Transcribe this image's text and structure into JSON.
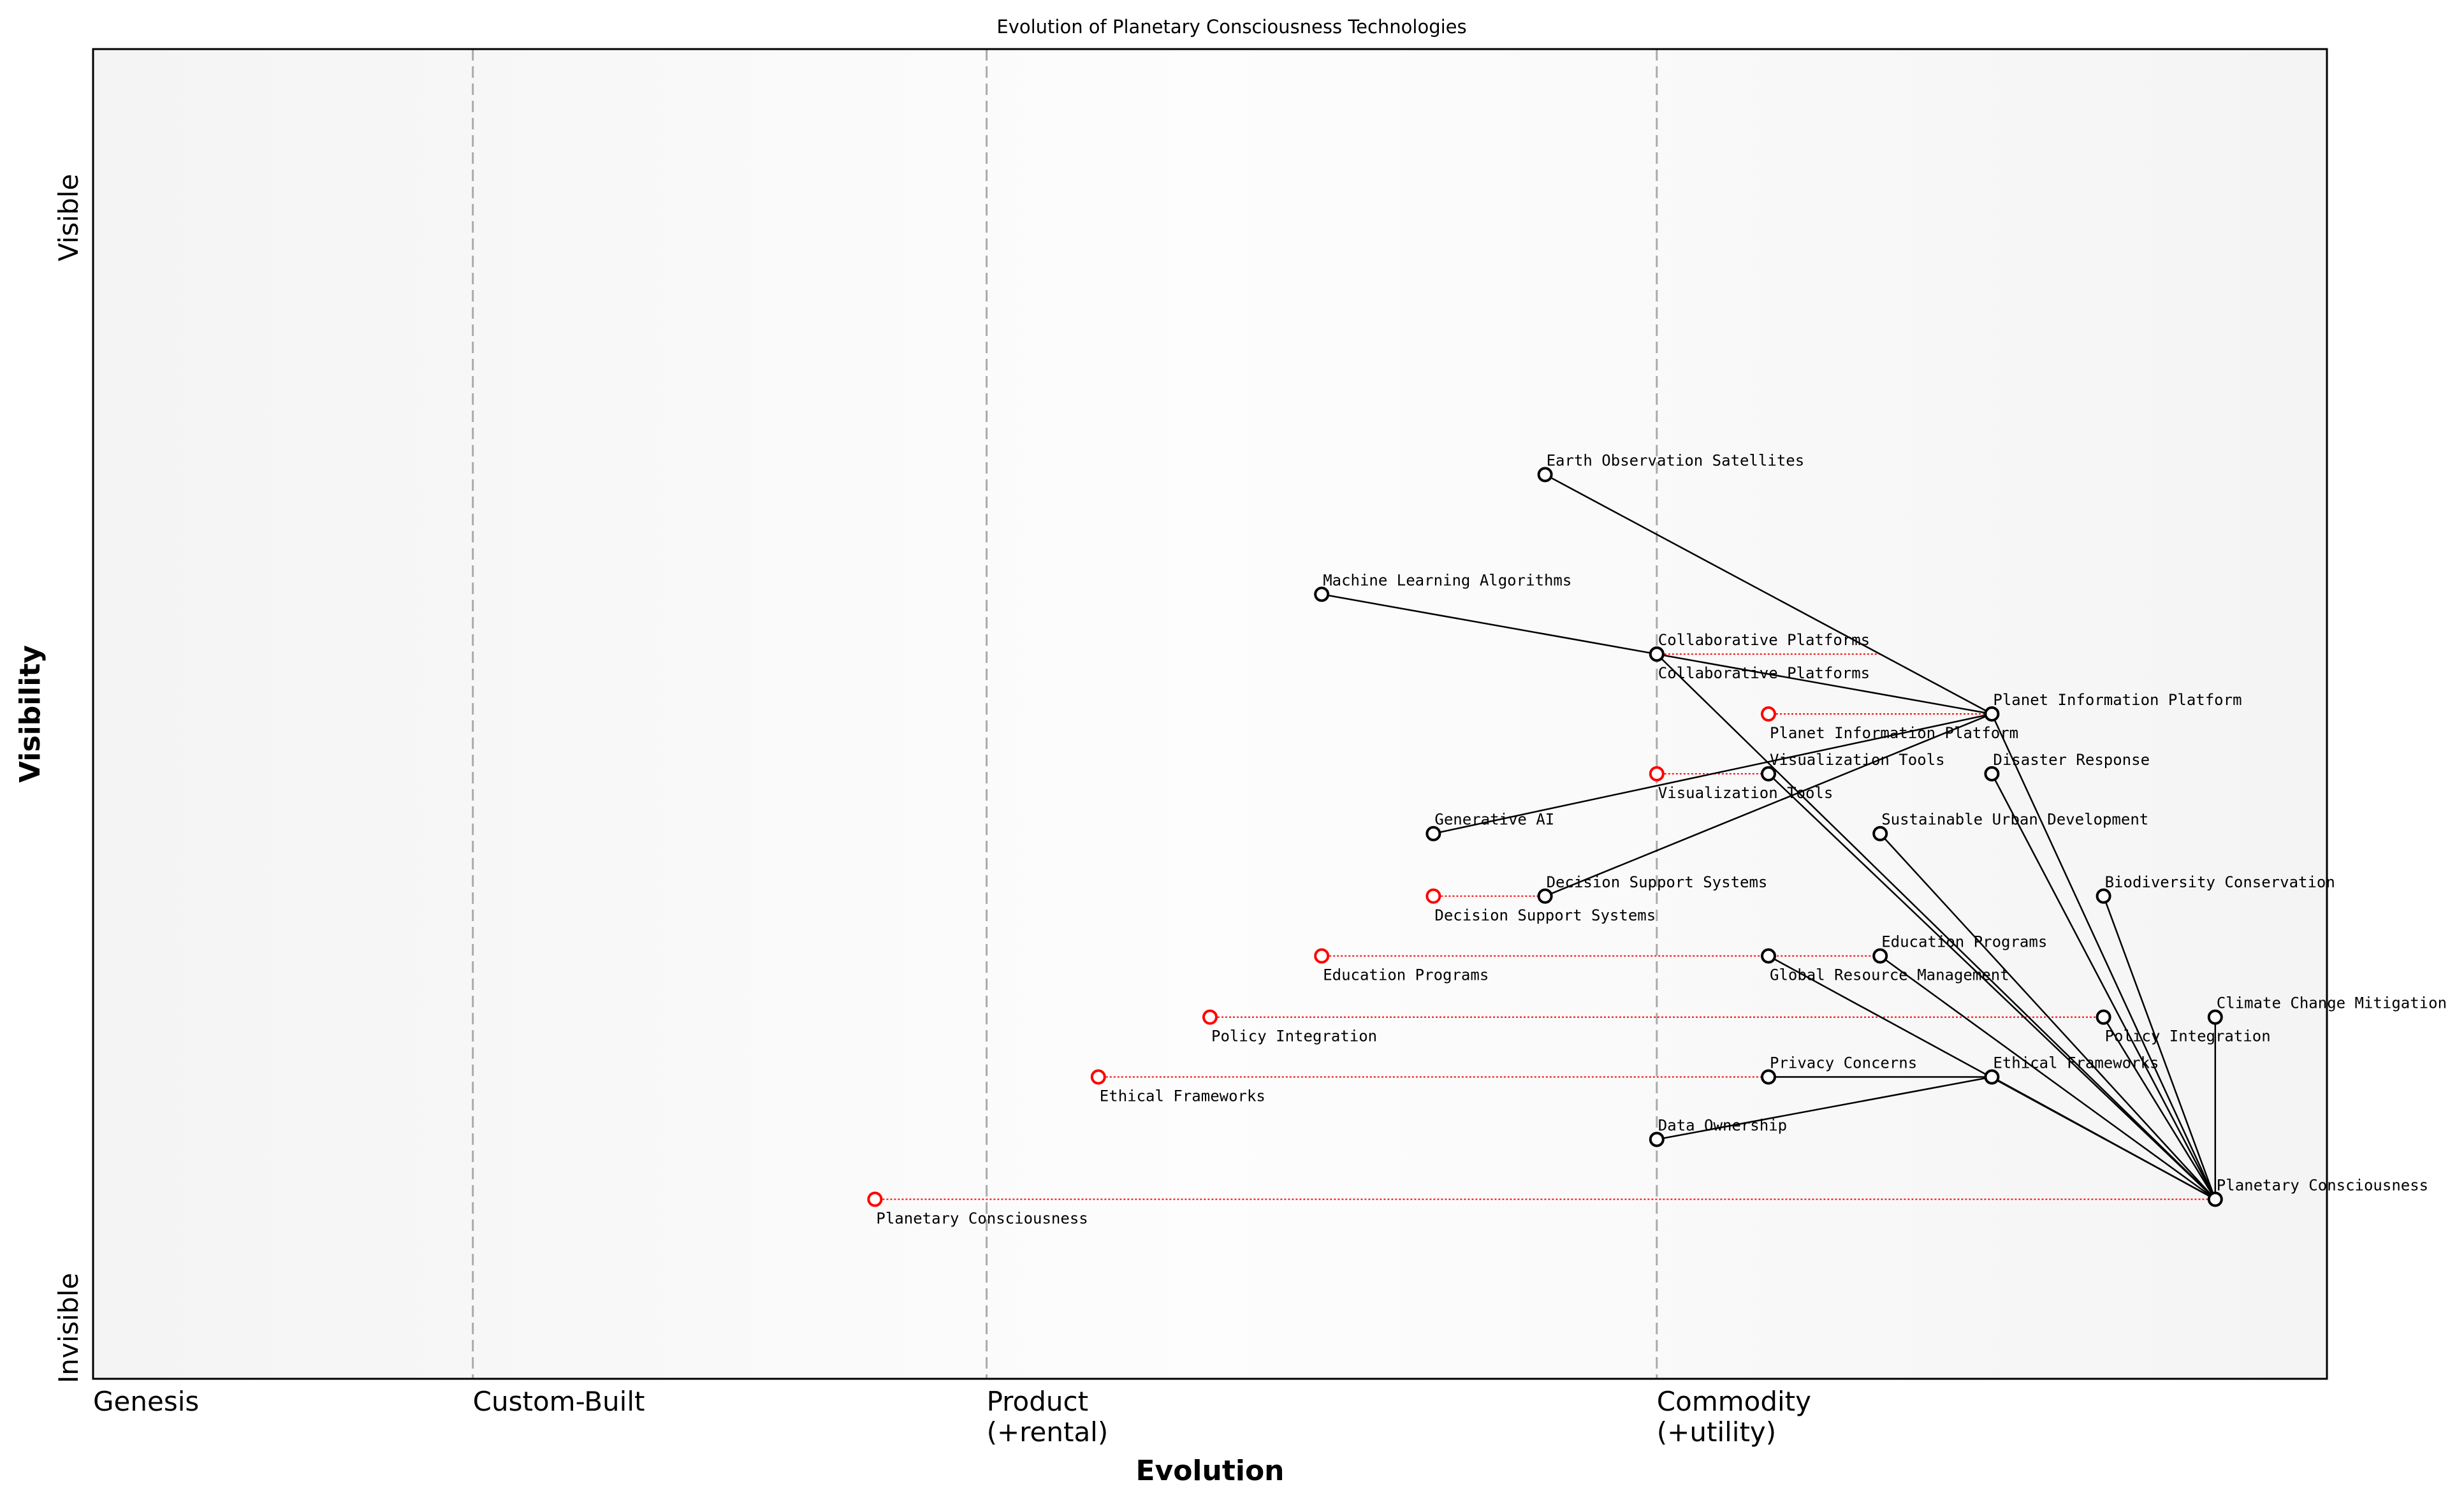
{
  "title": "Evolution of Planetary Consciousness Technologies",
  "x_axis": {
    "label": "Evolution",
    "stages": [
      {
        "name": "Genesis",
        "sub": "",
        "at": 0.0
      },
      {
        "name": "Custom-Built",
        "sub": "",
        "at": 0.17
      },
      {
        "name": "Product",
        "sub": "(+rental)",
        "at": 0.4
      },
      {
        "name": "Commodity",
        "sub": "(+utility)",
        "at": 0.7
      }
    ],
    "range": [
      0,
      1
    ]
  },
  "y_axis": {
    "label": "Visibility",
    "top": "Visible",
    "bottom": "Invisible",
    "range": [
      0,
      1
    ]
  },
  "colors": {
    "component": "#000000",
    "evolution": "#ff0000",
    "background_edge": "#f4f4f4",
    "background_center": "#fdfdfd",
    "stage_line": "#aaaaaa"
  },
  "components": [
    {
      "name": "Earth Observation Satellites",
      "evolution": 0.65,
      "visibility": 0.68
    },
    {
      "name": "Machine Learning Algorithms",
      "evolution": 0.55,
      "visibility": 0.59
    },
    {
      "name": "Collaborative Platforms",
      "evolution": 0.7,
      "visibility": 0.545
    },
    {
      "name": "Planet Information Platform",
      "evolution": 0.85,
      "visibility": 0.5
    },
    {
      "name": "Visualization Tools",
      "evolution": 0.75,
      "visibility": 0.455
    },
    {
      "name": "Disaster Response",
      "evolution": 0.85,
      "visibility": 0.455
    },
    {
      "name": "Generative AI",
      "evolution": 0.6,
      "visibility": 0.41
    },
    {
      "name": "Sustainable Urban Development",
      "evolution": 0.8,
      "visibility": 0.41
    },
    {
      "name": "Decision Support Systems",
      "evolution": 0.65,
      "visibility": 0.363
    },
    {
      "name": "Biodiversity Conservation",
      "evolution": 0.9,
      "visibility": 0.363
    },
    {
      "name": "Global Resource Management",
      "evolution": 0.75,
      "visibility": 0.318
    },
    {
      "name": "Education Programs",
      "evolution": 0.8,
      "visibility": 0.318
    },
    {
      "name": "Policy Integration",
      "evolution": 0.9,
      "visibility": 0.272
    },
    {
      "name": "Climate Change Mitigation",
      "evolution": 0.95,
      "visibility": 0.272
    },
    {
      "name": "Privacy Concerns",
      "evolution": 0.75,
      "visibility": 0.227
    },
    {
      "name": "Ethical Frameworks",
      "evolution": 0.85,
      "visibility": 0.227
    },
    {
      "name": "Data Ownership",
      "evolution": 0.7,
      "visibility": 0.18
    },
    {
      "name": "Planetary Consciousness",
      "evolution": 0.95,
      "visibility": 0.135
    }
  ],
  "evolutions": [
    {
      "name": "Collaborative Platforms",
      "from": 0.7,
      "to": 0.8
    },
    {
      "name": "Planet Information Platform",
      "from": 0.75,
      "to": 0.85
    },
    {
      "name": "Visualization Tools",
      "from": 0.7,
      "to": 0.75
    },
    {
      "name": "Decision Support Systems",
      "from": 0.6,
      "to": 0.65
    },
    {
      "name": "Education Programs",
      "from": 0.55,
      "to": 0.8
    },
    {
      "name": "Policy Integration",
      "from": 0.5,
      "to": 0.9
    },
    {
      "name": "Ethical Frameworks",
      "from": 0.45,
      "to": 0.85
    },
    {
      "name": "Planetary Consciousness",
      "from": 0.35,
      "to": 0.95
    }
  ],
  "links": [
    [
      "Earth Observation Satellites",
      "Planet Information Platform"
    ],
    [
      "Machine Learning Algorithms",
      "Planet Information Platform"
    ],
    [
      "Generative AI",
      "Planet Information Platform"
    ],
    [
      "Decision Support Systems",
      "Planet Information Platform"
    ],
    [
      "Collaborative Platforms",
      "Planetary Consciousness"
    ],
    [
      "Visualization Tools",
      "Planetary Consciousness"
    ],
    [
      "Planet Information Platform",
      "Planetary Consciousness"
    ],
    [
      "Disaster Response",
      "Planetary Consciousness"
    ],
    [
      "Sustainable Urban Development",
      "Planetary Consciousness"
    ],
    [
      "Biodiversity Conservation",
      "Planetary Consciousness"
    ],
    [
      "Global Resource Management",
      "Planetary Consciousness"
    ],
    [
      "Education Programs",
      "Planetary Consciousness"
    ],
    [
      "Policy Integration",
      "Planetary Consciousness"
    ],
    [
      "Climate Change Mitigation",
      "Planetary Consciousness"
    ],
    [
      "Privacy Concerns",
      "Ethical Frameworks"
    ],
    [
      "Data Ownership",
      "Ethical Frameworks"
    ],
    [
      "Ethical Frameworks",
      "Planetary Consciousness"
    ]
  ]
}
